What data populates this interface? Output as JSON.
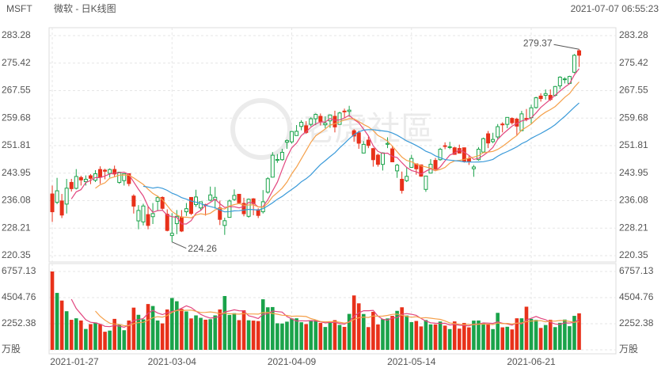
{
  "header": {
    "symbol": "MSFT",
    "name": "微软 - 日K线图",
    "timestamp": "2021-07-07 06:55:23"
  },
  "watermark": "老虎社區",
  "chart_data": {
    "type": "candlestick",
    "up_color": "#1aa34a",
    "down_color": "#e8311a",
    "ylim": [
      220.35,
      283.28
    ],
    "yticks": [
      283.28,
      275.42,
      267.55,
      259.68,
      251.81,
      243.95,
      236.08,
      228.21,
      220.35
    ],
    "volume_ylim": [
      0,
      6757.13
    ],
    "volume_yticks": [
      6757.13,
      4504.76,
      2252.38,
      {
        "value": 0,
        "label": "万股"
      }
    ],
    "grid": true,
    "moving_averages": [
      {
        "period": 5,
        "color": "#e2467f"
      },
      {
        "period": 10,
        "color": "#f5a04a"
      },
      {
        "period": 20,
        "color": "#3a9ad9"
      }
    ],
    "volume_moving_averages": [
      {
        "period": 5,
        "color": "#e2467f"
      },
      {
        "period": 10,
        "color": "#f5a04a"
      }
    ],
    "categories": [
      "2021-01-27",
      null,
      null,
      null,
      null,
      null,
      null,
      null,
      null,
      null,
      null,
      null,
      null,
      null,
      null,
      null,
      null,
      null,
      null,
      null,
      null,
      null,
      null,
      null,
      null,
      "2021-03-04",
      null,
      null,
      null,
      null,
      null,
      null,
      null,
      null,
      null,
      null,
      null,
      null,
      null,
      null,
      null,
      null,
      null,
      null,
      null,
      null,
      null,
      null,
      null,
      null,
      "2021-04-09",
      null,
      null,
      null,
      null,
      null,
      null,
      null,
      null,
      null,
      null,
      null,
      null,
      null,
      null,
      null,
      null,
      null,
      null,
      null,
      null,
      null,
      null,
      null,
      null,
      "2021-05-14",
      null,
      null,
      null,
      null,
      null,
      null,
      null,
      null,
      null,
      null,
      null,
      null,
      null,
      null,
      null,
      null,
      null,
      null,
      null,
      null,
      null,
      null,
      null,
      null,
      "2021-06-21",
      null,
      null,
      null,
      null,
      null,
      null,
      null,
      null,
      null,
      null
    ],
    "ohlc": [
      [
        238.0,
        240.4,
        230.0,
        232.9
      ],
      [
        235.6,
        242.6,
        235.1,
        238.9
      ],
      [
        235.99,
        238.0,
        231.1,
        231.96
      ],
      [
        235.1,
        242.3,
        232.4,
        239.65
      ],
      [
        241.3,
        242.3,
        238.7,
        239.51
      ],
      [
        239.6,
        245.1,
        239.3,
        243.0
      ],
      [
        242.7,
        243.2,
        240.4,
        242.0
      ],
      [
        241.5,
        243.3,
        240.4,
        242.2
      ],
      [
        243.2,
        243.7,
        240.8,
        242.47
      ],
      [
        241.9,
        244.8,
        241.4,
        243.77
      ],
      [
        245.0,
        245.9,
        240.9,
        242.82
      ],
      [
        244.8,
        245.2,
        242.2,
        244.49
      ],
      [
        243.9,
        245.3,
        242.7,
        244.99
      ],
      [
        245.0,
        246.1,
        242.9,
        243.7
      ],
      [
        241.3,
        244.3,
        240.9,
        244.2
      ],
      [
        241.8,
        243.9,
        240.4,
        243.79
      ],
      [
        243.8,
        243.9,
        240.2,
        240.97
      ],
      [
        237.4,
        237.9,
        232.4,
        234.51
      ],
      [
        230.3,
        234.8,
        227.9,
        233.27
      ],
      [
        230.0,
        235.2,
        229.0,
        234.55
      ],
      [
        232.1,
        234.6,
        227.9,
        228.99
      ],
      [
        231.5,
        235.4,
        229.4,
        232.38
      ],
      [
        235.9,
        237.5,
        233.1,
        236.94
      ],
      [
        237.0,
        237.3,
        233.5,
        233.87
      ],
      [
        232.2,
        233.6,
        227.3,
        227.56
      ],
      [
        226.1,
        232.5,
        224.26,
        226.73
      ],
      [
        229.5,
        233.4,
        226.5,
        231.6
      ],
      [
        231.4,
        233.4,
        227.1,
        227.39
      ],
      [
        232.9,
        235.4,
        231.7,
        233.78
      ],
      [
        237.0,
        237.0,
        232.0,
        232.42
      ],
      [
        234.96,
        239.2,
        234.3,
        237.13
      ],
      [
        234.0,
        235.8,
        233.2,
        235.75
      ],
      [
        234.96,
        235.2,
        231.8,
        234.81
      ],
      [
        236.2,
        240.1,
        235.9,
        237.71
      ],
      [
        236.3,
        240.0,
        233.8,
        237.04
      ],
      [
        234.0,
        236.1,
        229.1,
        230.72
      ],
      [
        229.0,
        231.2,
        226.3,
        230.35
      ],
      [
        231.3,
        236.4,
        231.3,
        235.99
      ],
      [
        236.4,
        239.3,
        236.0,
        237.58
      ],
      [
        237.9,
        238.0,
        235.3,
        235.46
      ],
      [
        235.3,
        236.9,
        231.6,
        232.34
      ],
      [
        231.6,
        236.7,
        231.2,
        236.48
      ],
      [
        236.6,
        236.8,
        231.9,
        235.24
      ],
      [
        233.5,
        233.9,
        231.1,
        231.85
      ],
      [
        232.9,
        239.1,
        232.4,
        235.77
      ],
      [
        238.5,
        242.8,
        238.1,
        242.35
      ],
      [
        242.8,
        249.96,
        242.7,
        249.07
      ],
      [
        247.6,
        249.4,
        246.9,
        247.86
      ],
      [
        247.8,
        250.9,
        247.5,
        249.9
      ],
      [
        252.8,
        253.6,
        250.9,
        253.25
      ],
      [
        252.9,
        255.99,
        252.4,
        255.85
      ],
      [
        254.7,
        257.7,
        254.6,
        255.91
      ],
      [
        257.3,
        259.1,
        256.2,
        258.49
      ],
      [
        257.5,
        258.8,
        255.2,
        255.59
      ],
      [
        257.9,
        259.9,
        257.3,
        259.5
      ],
      [
        259.5,
        261.0,
        257.7,
        260.74
      ],
      [
        260.2,
        261.0,
        257.6,
        258.74
      ],
      [
        257.8,
        260.2,
        256.8,
        258.26
      ],
      [
        258.9,
        260.7,
        256.9,
        260.58
      ],
      [
        260.2,
        261.8,
        255.6,
        257.17
      ],
      [
        257.9,
        261.5,
        257.8,
        261.15
      ],
      [
        261.7,
        262.4,
        259.8,
        261.55
      ],
      [
        261.6,
        263.2,
        260.1,
        261.97
      ],
      [
        256.1,
        256.5,
        252.9,
        254.56
      ],
      [
        255.5,
        256.1,
        250.9,
        252.51
      ],
      [
        249.7,
        253.1,
        249.6,
        252.18
      ],
      [
        253.4,
        254.4,
        251.1,
        251.86
      ],
      [
        250.97,
        251.2,
        245.8,
        247.79
      ],
      [
        249.1,
        249.5,
        245.8,
        246.47
      ],
      [
        246.45,
        249.9,
        244.7,
        249.73
      ],
      [
        252.2,
        254.2,
        251.1,
        252.46
      ],
      [
        250.9,
        251.7,
        247.1,
        247.18
      ],
      [
        244.6,
        246.6,
        242.6,
        246.23
      ],
      [
        242.2,
        244.4,
        238.1,
        239.0
      ],
      [
        241.8,
        245.6,
        241.4,
        243.03
      ],
      [
        245.6,
        249.2,
        245.5,
        248.15
      ],
      [
        246.6,
        246.6,
        243.5,
        245.18
      ],
      [
        246.3,
        246.4,
        242.9,
        243.08
      ],
      [
        239.3,
        243.2,
        238.6,
        243.12
      ],
      [
        243.96,
        247.95,
        243.9,
        246.48
      ],
      [
        247.6,
        248.3,
        244.7,
        245.17
      ],
      [
        247.8,
        251.2,
        247.5,
        250.78
      ],
      [
        251.8,
        252.75,
        250.8,
        251.72
      ],
      [
        251.4,
        252.9,
        250.8,
        251.49
      ],
      [
        251.2,
        251.5,
        249.3,
        249.31
      ],
      [
        251.0,
        252.1,
        249.6,
        249.68
      ],
      [
        251.2,
        251.3,
        246.96,
        247.4
      ],
      [
        248.1,
        249.0,
        246.3,
        247.3
      ],
      [
        245.2,
        246.3,
        242.9,
        245.71
      ],
      [
        247.8,
        251.4,
        247.5,
        250.79
      ],
      [
        249.98,
        254.1,
        249.8,
        253.81
      ],
      [
        255.2,
        256.0,
        251.1,
        252.57
      ],
      [
        252.97,
        255.5,
        252.5,
        253.59
      ],
      [
        254.3,
        257.99,
        253.7,
        257.24
      ],
      [
        257.99,
        258.5,
        255.6,
        257.89
      ],
      [
        257.9,
        259.96,
        256.8,
        259.89
      ],
      [
        259.6,
        259.9,
        257.8,
        258.36
      ],
      [
        259.4,
        259.8,
        254.6,
        257.38
      ],
      [
        256.1,
        261.75,
        256.0,
        260.9
      ],
      [
        259.6,
        262.3,
        258.8,
        259.43
      ],
      [
        259.8,
        263.5,
        257.9,
        262.63
      ],
      [
        262.7,
        265.8,
        262.4,
        265.51
      ],
      [
        265.99,
        266.8,
        264.4,
        265.27
      ],
      [
        266.2,
        267.9,
        265.0,
        266.69
      ],
      [
        266.2,
        267.9,
        264.6,
        265.02
      ],
      [
        266.2,
        268.9,
        265.9,
        268.72
      ],
      [
        268.9,
        271.65,
        267.98,
        271.4
      ],
      [
        270.7,
        271.4,
        269.6,
        270.9
      ],
      [
        269.6,
        271.8,
        269.6,
        271.6
      ],
      [
        272.8,
        278.0,
        272.5,
        277.65
      ],
      [
        278.96,
        279.37,
        274.3,
        277.66
      ]
    ],
    "volume": [
      6757.13,
      4910,
      4250,
      3330,
      2590,
      2720,
      2530,
      1800,
      2220,
      2360,
      2210,
      1560,
      1660,
      2670,
      2150,
      1690,
      2530,
      3640,
      3020,
      2630,
      3950,
      3780,
      2530,
      2280,
      3480,
      4470,
      4190,
      3530,
      3310,
      2710,
      2970,
      2760,
      2600,
      2640,
      2970,
      3480,
      4640,
      3010,
      3160,
      2560,
      3410,
      2550,
      2520,
      2480,
      4360,
      3670,
      3690,
      2290,
      2270,
      2430,
      2710,
      2720,
      2380,
      2220,
      2560,
      2560,
      2320,
      1970,
      2400,
      2560,
      2150,
      1980,
      3100,
      4690,
      4010,
      3090,
      1960,
      3280,
      2190,
      2650,
      2710,
      2930,
      3360,
      3670,
      2960,
      2390,
      2490,
      2020,
      2570,
      2190,
      2190,
      2440,
      2090,
      1790,
      2450,
      1830,
      2320,
      1940,
      2520,
      2530,
      2310,
      2250,
      1790,
      3190,
      1940,
      1990,
      1760,
      2720,
      2720,
      3720,
      2670,
      2580,
      1890,
      2140,
      2590,
      1960,
      2330,
      2610,
      2040,
      2930,
      3150
    ]
  }
}
